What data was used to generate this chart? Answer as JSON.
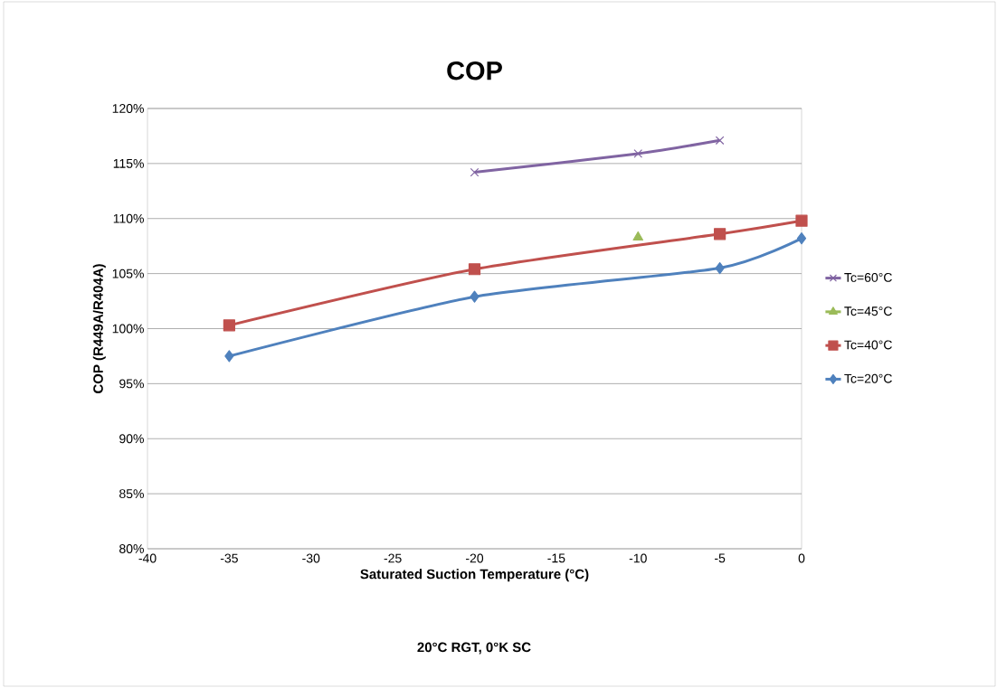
{
  "chart_data": {
    "type": "line",
    "title": "COP",
    "xlabel": "Saturated Suction Temperature (°C)",
    "ylabel": "COP (R449A/R404A)",
    "annotations": [
      "20°C RGT, 0°K SC"
    ],
    "series": [
      {
        "name": "Tc=60°C",
        "color": "#8064a2",
        "marker": "cross",
        "x": [
          -20,
          -10,
          -5
        ],
        "values": [
          114.2,
          115.9,
          117.1
        ]
      },
      {
        "name": "Tc=45°C",
        "color": "#9bbb59",
        "marker": "triangle",
        "x": [
          -10
        ],
        "values": [
          108.3
        ]
      },
      {
        "name": "Tc=40°C",
        "color": "#c0504d",
        "marker": "square",
        "x": [
          -35,
          -20,
          -5,
          0
        ],
        "values": [
          100.3,
          105.4,
          108.6,
          109.8
        ]
      },
      {
        "name": "Tc=20°C",
        "color": "#4f81bd",
        "marker": "diamond",
        "x": [
          -35,
          -20,
          -5,
          0
        ],
        "values": [
          97.5,
          102.9,
          105.5,
          108.2
        ]
      }
    ],
    "xlim": [
      -40,
      0
    ],
    "xticks": [
      -40,
      -35,
      -30,
      -25,
      -20,
      -15,
      -10,
      -5,
      0
    ],
    "ylim": [
      80,
      120
    ],
    "yticks": [
      {
        "value": 80,
        "label": "80%"
      },
      {
        "value": 85,
        "label": "85%"
      },
      {
        "value": 90,
        "label": "90%"
      },
      {
        "value": 95,
        "label": "95%"
      },
      {
        "value": 100,
        "label": "100%"
      },
      {
        "value": 105,
        "label": "105%"
      },
      {
        "value": 110,
        "label": "110%"
      },
      {
        "value": 115,
        "label": "115%"
      },
      {
        "value": 120,
        "label": "120%"
      }
    ],
    "grid": "y",
    "legend": "right"
  }
}
